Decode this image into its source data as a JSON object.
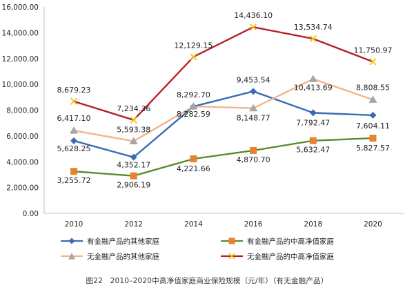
{
  "chart_data": {
    "type": "line",
    "categories": [
      "2010",
      "2012",
      "2014",
      "2016",
      "2018",
      "2020"
    ],
    "ylim": [
      0,
      16000
    ],
    "yticks": [
      0,
      2000,
      4000,
      6000,
      8000,
      10000,
      12000,
      14000,
      16000
    ],
    "ytick_labels": [
      "0.00",
      "2,000.00",
      "4,000.00",
      "6,000.00",
      "8,000.00",
      "10,000.00",
      "12,000.00",
      "14,000.00",
      "16,000.00"
    ],
    "grid": false,
    "legend_position": "bottom",
    "series": [
      {
        "name": "有金融产品的其他家庭",
        "color": "#3a6cb4",
        "marker": "diamond",
        "values": [
          5628.25,
          4352.17,
          8282.59,
          9453.54,
          7792.47,
          7604.11
        ],
        "labels": [
          "5,628.25",
          "4,352.17",
          "8,282.59",
          "9,453.54",
          "7,792.47",
          "7,604.11"
        ]
      },
      {
        "name": "有金融产品的中高净值家庭",
        "color": "#5c8a2e",
        "marker": "square",
        "marker_color": "#e8822f",
        "values": [
          3255.72,
          2906.19,
          4221.66,
          4870.7,
          5632.47,
          5827.57
        ],
        "labels": [
          "3,255.72",
          "2,906.19",
          "4,221.66",
          "4,870.70",
          "5,632.47",
          "5,827.57"
        ]
      },
      {
        "name": "无金融产品的其他家庭",
        "color": "#f2b48c",
        "marker": "triangle",
        "marker_color": "#a6a6a6",
        "values": [
          6417.1,
          5593.38,
          8292.7,
          8148.77,
          10413.69,
          8808.55
        ],
        "labels": [
          "6,417.10",
          "5,593.38",
          "8,292.70",
          "8,148.77",
          "10,413.69",
          "8,808.55"
        ]
      },
      {
        "name": "无金融产品的中高净值家庭",
        "color": "#b52025",
        "marker": "cross",
        "marker_color": "#f0c419",
        "values": [
          8679.23,
          7234.36,
          12129.15,
          14436.1,
          13534.74,
          11750.97
        ],
        "labels": [
          "8,679.23",
          "7,234.36",
          "12,129.15",
          "14,436.10",
          "13,534.74",
          "11,750.97"
        ]
      }
    ]
  },
  "caption": "图22　2010–2020中高净值家庭商业保险规模（元/年）（有无金融产品）"
}
